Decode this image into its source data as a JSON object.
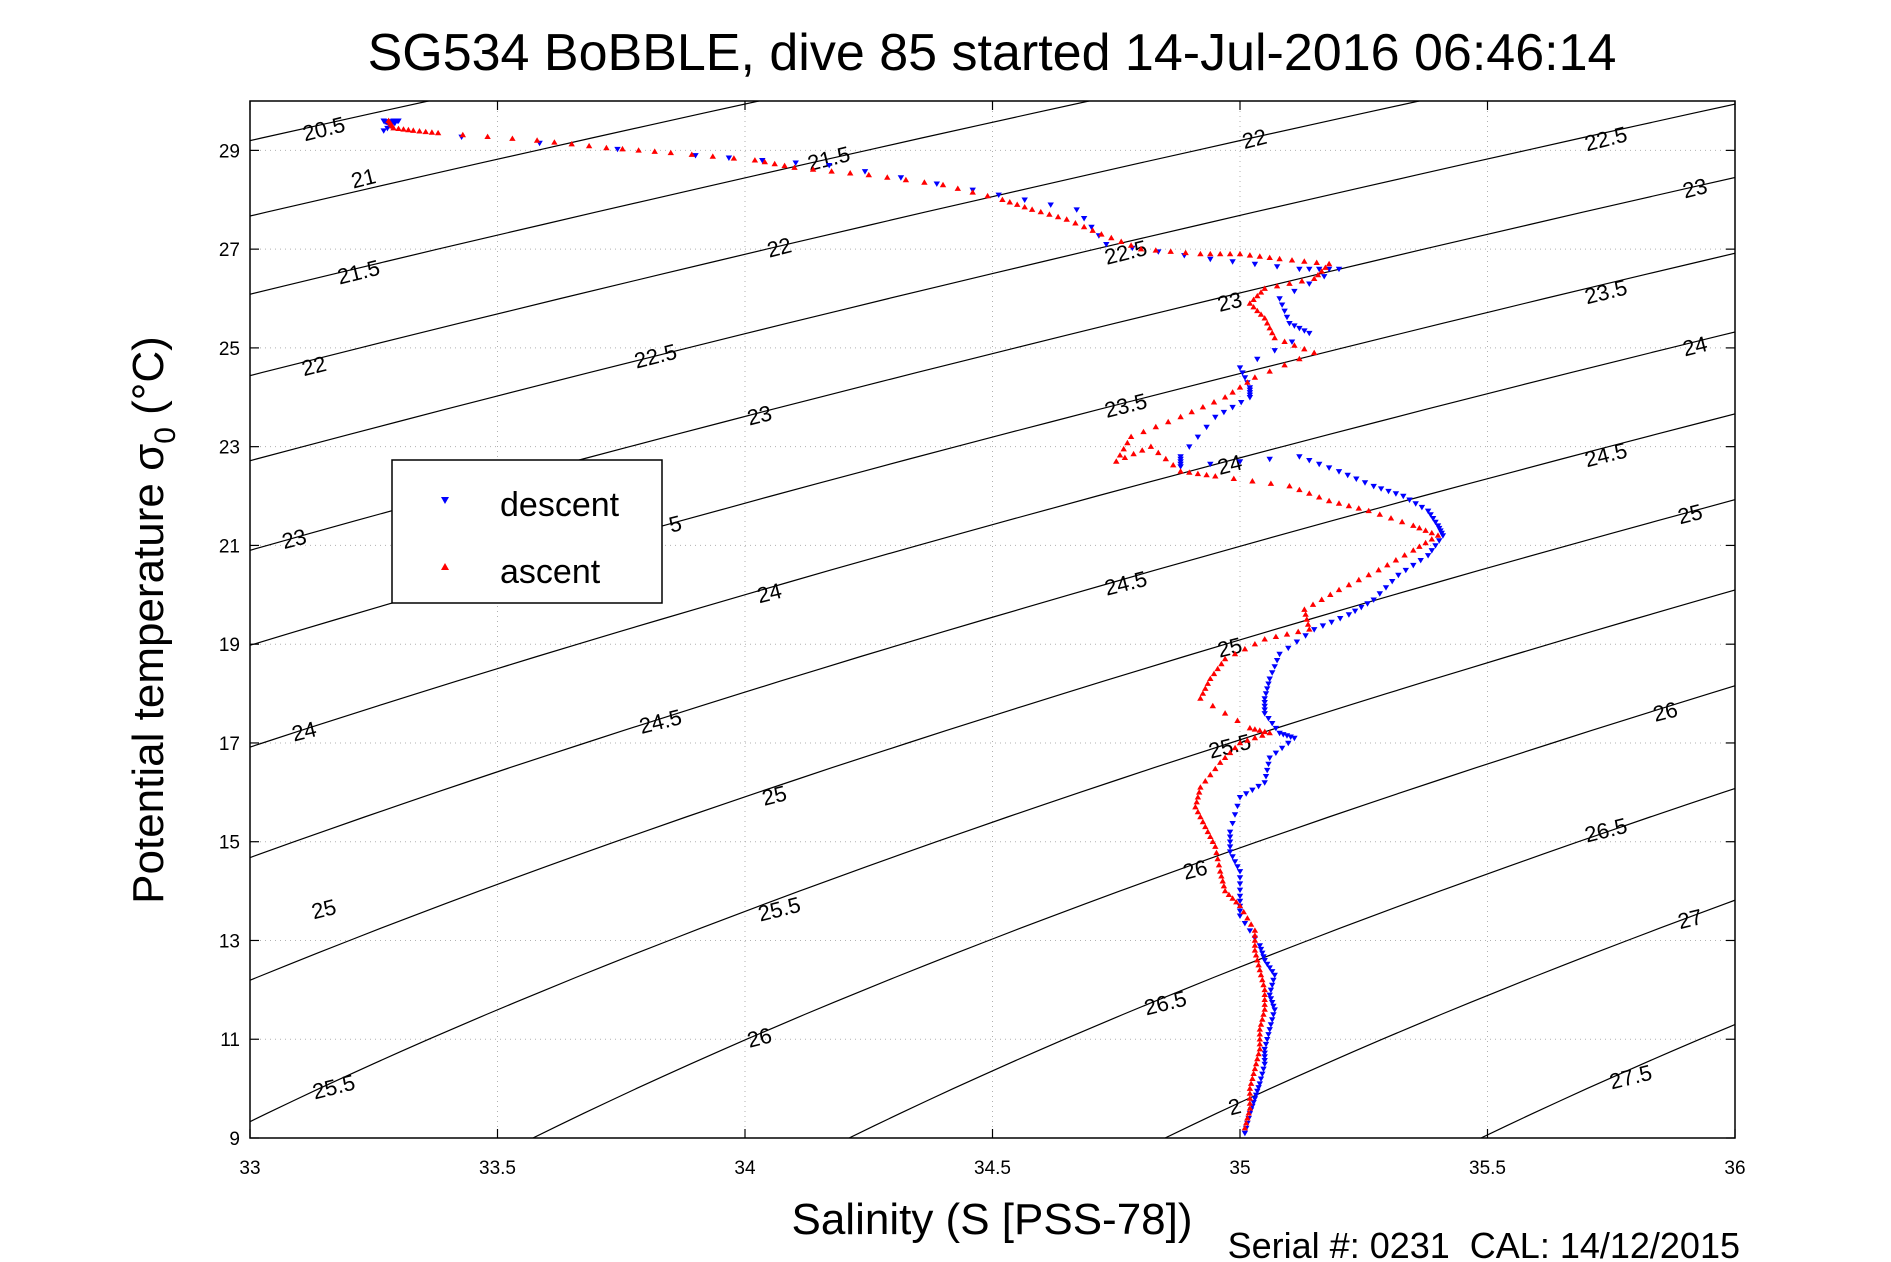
{
  "chart_data": {
    "type": "scatter",
    "title": "SG534 BoBBLE, dive 85 started 14-Jul-2016 06:46:14",
    "xlabel": "Salinity (S [PSS-78])",
    "ylabel_main": "Potential temperature σ",
    "ylabel_sub": "0",
    "ylabel_unit": " (°C)",
    "xlim": [
      33,
      36
    ],
    "ylim": [
      9,
      30
    ],
    "xticks": [
      "33",
      "33.5",
      "34",
      "34.5",
      "35",
      "35.5",
      "36"
    ],
    "xtick_values": [
      33,
      33.5,
      34,
      34.5,
      35,
      35.5,
      36
    ],
    "yticks": [
      "9",
      "11",
      "13",
      "15",
      "17",
      "19",
      "21",
      "23",
      "25",
      "27",
      "29"
    ],
    "ytick_values": [
      9,
      11,
      13,
      15,
      17,
      19,
      21,
      23,
      25,
      27,
      29
    ],
    "grid": "dotted",
    "legend_position": "left-middle",
    "isopycnals": {
      "levels": [
        20.5,
        21,
        21.5,
        22,
        22.5,
        23,
        23.5,
        24,
        24.5,
        25,
        25.5,
        26,
        26.5,
        27,
        27.5
      ],
      "color": "#000000"
    },
    "contour_labels": [
      {
        "text": "20.5",
        "s": 33.15,
        "t": 29.4
      },
      {
        "text": "21",
        "s": 33.23,
        "t": 28.4
      },
      {
        "text": "21.5",
        "s": 33.22,
        "t": 26.5
      },
      {
        "text": "22",
        "s": 33.13,
        "t": 24.6
      },
      {
        "text": "23",
        "s": 33.09,
        "t": 21.1
      },
      {
        "text": "24",
        "s": 33.11,
        "t": 17.2
      },
      {
        "text": "25",
        "s": 33.15,
        "t": 13.6
      },
      {
        "text": "25.5",
        "s": 33.17,
        "t": 10.0
      },
      {
        "text": "21.5",
        "s": 34.17,
        "t": 28.8
      },
      {
        "text": "22",
        "s": 34.07,
        "t": 27.0
      },
      {
        "text": "22.5",
        "s": 33.82,
        "t": 24.8
      },
      {
        "text": "23",
        "s": 34.03,
        "t": 23.6
      },
      {
        "text": "5",
        "s": 33.86,
        "t": 21.4
      },
      {
        "text": "24",
        "s": 34.05,
        "t": 20.0
      },
      {
        "text": "24.5",
        "s": 33.83,
        "t": 17.4
      },
      {
        "text": "25",
        "s": 34.06,
        "t": 15.9
      },
      {
        "text": "25.5",
        "s": 34.07,
        "t": 13.6
      },
      {
        "text": "26",
        "s": 34.03,
        "t": 11.0
      },
      {
        "text": "22.5",
        "s": 34.77,
        "t": 26.9
      },
      {
        "text": "23.5",
        "s": 34.77,
        "t": 23.8
      },
      {
        "text": "24.5",
        "s": 34.77,
        "t": 20.2
      },
      {
        "text": "26.5",
        "s": 34.85,
        "t": 11.7
      },
      {
        "text": "22",
        "s": 35.03,
        "t": 29.2
      },
      {
        "text": "23",
        "s": 34.98,
        "t": 25.9
      },
      {
        "text": "24",
        "s": 34.98,
        "t": 22.6
      },
      {
        "text": "25",
        "s": 34.98,
        "t": 18.9
      },
      {
        "text": "25.5",
        "s": 34.98,
        "t": 16.9
      },
      {
        "text": "26",
        "s": 34.91,
        "t": 14.4
      },
      {
        "text": "2",
        "s": 34.99,
        "t": 9.6
      },
      {
        "text": "22.5",
        "s": 35.74,
        "t": 29.2
      },
      {
        "text": "23",
        "s": 35.92,
        "t": 28.2
      },
      {
        "text": "23.5",
        "s": 35.74,
        "t": 26.1
      },
      {
        "text": "24",
        "s": 35.92,
        "t": 25.0
      },
      {
        "text": "24.5",
        "s": 35.74,
        "t": 22.8
      },
      {
        "text": "25",
        "s": 35.91,
        "t": 21.6
      },
      {
        "text": "26",
        "s": 35.86,
        "t": 17.6
      },
      {
        "text": "26.5",
        "s": 35.74,
        "t": 15.2
      },
      {
        "text": "27",
        "s": 35.91,
        "t": 13.4
      },
      {
        "text": "27.5",
        "s": 35.79,
        "t": 10.2
      }
    ],
    "series": [
      {
        "name": "descent",
        "color": "#0000ff",
        "marker": "triangle-down",
        "points": [
          [
            33.27,
            29.6
          ],
          [
            33.28,
            29.55
          ],
          [
            33.29,
            29.6
          ],
          [
            33.3,
            29.6
          ],
          [
            33.27,
            29.4
          ],
          [
            33.9,
            28.9
          ],
          [
            34.17,
            28.7
          ],
          [
            34.46,
            28.2
          ],
          [
            34.67,
            27.8
          ],
          [
            34.73,
            27.1
          ],
          [
            34.94,
            26.8
          ],
          [
            35.12,
            26.6
          ],
          [
            35.2,
            26.6
          ],
          [
            35.08,
            26.0
          ],
          [
            35.1,
            25.5
          ],
          [
            35.14,
            25.3
          ],
          [
            35.0,
            24.6
          ],
          [
            35.02,
            24.2
          ],
          [
            35.02,
            24.0
          ],
          [
            34.95,
            23.6
          ],
          [
            34.88,
            22.8
          ],
          [
            34.88,
            22.6
          ],
          [
            35.12,
            22.8
          ],
          [
            35.2,
            22.5
          ],
          [
            35.27,
            22.2
          ],
          [
            35.33,
            22.0
          ],
          [
            35.38,
            21.7
          ],
          [
            35.4,
            21.4
          ],
          [
            35.41,
            21.2
          ],
          [
            35.38,
            20.8
          ],
          [
            35.32,
            20.4
          ],
          [
            35.27,
            19.9
          ],
          [
            35.22,
            19.6
          ],
          [
            35.15,
            19.3
          ],
          [
            35.08,
            18.8
          ],
          [
            35.06,
            18.3
          ],
          [
            35.05,
            17.9
          ],
          [
            35.05,
            17.6
          ],
          [
            35.08,
            17.2
          ],
          [
            35.11,
            17.1
          ],
          [
            35.06,
            16.7
          ],
          [
            35.05,
            16.2
          ],
          [
            35.0,
            15.9
          ],
          [
            34.98,
            15.2
          ],
          [
            34.98,
            14.8
          ],
          [
            35.0,
            14.4
          ],
          [
            35.0,
            13.9
          ],
          [
            35.0,
            13.5
          ],
          [
            35.04,
            12.9
          ],
          [
            35.05,
            12.6
          ],
          [
            35.07,
            12.3
          ],
          [
            35.06,
            11.9
          ],
          [
            35.07,
            11.6
          ],
          [
            35.06,
            11.2
          ],
          [
            35.05,
            10.8
          ],
          [
            35.05,
            10.5
          ],
          [
            35.04,
            10.1
          ],
          [
            35.03,
            9.8
          ],
          [
            35.02,
            9.5
          ],
          [
            35.01,
            9.1
          ]
        ]
      },
      {
        "name": "ascent",
        "color": "#ff0000",
        "marker": "triangle-up",
        "points": [
          [
            33.28,
            29.6
          ],
          [
            33.29,
            29.45
          ],
          [
            33.33,
            29.4
          ],
          [
            33.38,
            29.35
          ],
          [
            33.58,
            29.2
          ],
          [
            33.72,
            29.05
          ],
          [
            33.85,
            28.95
          ],
          [
            34.02,
            28.8
          ],
          [
            34.1,
            28.65
          ],
          [
            34.25,
            28.5
          ],
          [
            34.4,
            28.3
          ],
          [
            34.52,
            28.0
          ],
          [
            34.58,
            27.8
          ],
          [
            34.65,
            27.6
          ],
          [
            34.72,
            27.3
          ],
          [
            34.8,
            27.0
          ],
          [
            34.92,
            26.9
          ],
          [
            35.0,
            26.9
          ],
          [
            35.08,
            26.8
          ],
          [
            35.18,
            26.7
          ],
          [
            35.15,
            26.4
          ],
          [
            35.05,
            26.2
          ],
          [
            35.02,
            25.9
          ],
          [
            35.05,
            25.6
          ],
          [
            35.07,
            25.2
          ],
          [
            35.15,
            24.9
          ],
          [
            35.03,
            24.4
          ],
          [
            34.97,
            24.0
          ],
          [
            34.88,
            23.6
          ],
          [
            34.78,
            23.2
          ],
          [
            34.75,
            22.7
          ],
          [
            34.82,
            23.0
          ],
          [
            34.88,
            22.5
          ],
          [
            34.95,
            22.4
          ],
          [
            35.1,
            22.2
          ],
          [
            35.18,
            21.9
          ],
          [
            35.26,
            21.7
          ],
          [
            35.35,
            21.4
          ],
          [
            35.4,
            21.2
          ],
          [
            35.35,
            20.9
          ],
          [
            35.28,
            20.5
          ],
          [
            35.2,
            20.1
          ],
          [
            35.13,
            19.7
          ],
          [
            35.14,
            19.3
          ],
          [
            35.05,
            19.1
          ],
          [
            34.97,
            18.7
          ],
          [
            34.94,
            18.3
          ],
          [
            34.92,
            17.9
          ],
          [
            35.02,
            17.3
          ],
          [
            35.06,
            17.2
          ],
          [
            35.0,
            17.0
          ],
          [
            34.96,
            16.6
          ],
          [
            34.92,
            16.1
          ],
          [
            34.91,
            15.7
          ],
          [
            34.93,
            15.3
          ],
          [
            34.95,
            14.9
          ],
          [
            34.96,
            14.4
          ],
          [
            34.97,
            14.0
          ],
          [
            35.0,
            13.7
          ],
          [
            35.03,
            13.2
          ],
          [
            35.03,
            12.8
          ],
          [
            35.04,
            12.4
          ],
          [
            35.05,
            12.0
          ],
          [
            35.05,
            11.6
          ],
          [
            35.04,
            11.2
          ],
          [
            35.04,
            10.8
          ],
          [
            35.03,
            10.4
          ],
          [
            35.02,
            10.0
          ],
          [
            35.02,
            9.6
          ],
          [
            35.01,
            9.2
          ]
        ]
      }
    ]
  },
  "legend": {
    "descent_label": "descent",
    "ascent_label": "ascent"
  },
  "footer": {
    "serial_text": "Serial #: 0231  CAL: 14/12/2015"
  }
}
